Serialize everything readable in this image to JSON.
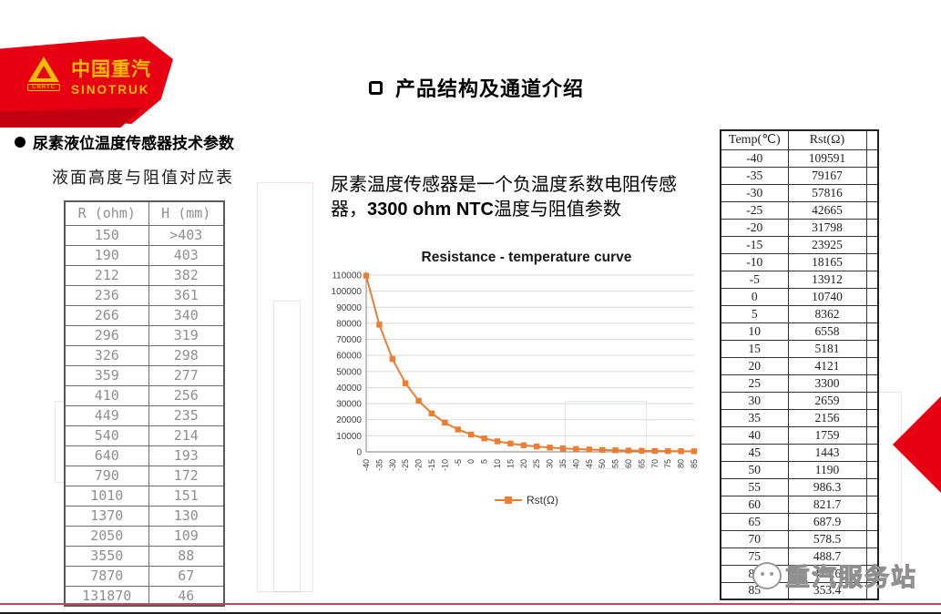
{
  "slide": {
    "logo": {
      "brand_cn": "中国重汽",
      "brand_en": "SINOTRUK",
      "emblem_label": "CNHTC"
    },
    "title": "产品结构及通道介绍",
    "section_heading": "尿素液位温度传感器技术参数",
    "description": {
      "part1": "尿素温度传感器是一个负温度系数电阻传感器，",
      "bold": "3300 ohm NTC",
      "part2": "温度与阻值参数"
    },
    "footer_watermark": "重汽服务站"
  },
  "level_table": {
    "title": "液面高度与阻值对应表",
    "headers": [
      "R (ohm)",
      "H (mm)"
    ],
    "rows": [
      [
        "150",
        ">403"
      ],
      [
        "190",
        "403"
      ],
      [
        "212",
        "382"
      ],
      [
        "236",
        "361"
      ],
      [
        "266",
        "340"
      ],
      [
        "296",
        "319"
      ],
      [
        "326",
        "298"
      ],
      [
        "359",
        "277"
      ],
      [
        "410",
        "256"
      ],
      [
        "449",
        "235"
      ],
      [
        "540",
        "214"
      ],
      [
        "640",
        "193"
      ],
      [
        "790",
        "172"
      ],
      [
        "1010",
        "151"
      ],
      [
        "1370",
        "130"
      ],
      [
        "2050",
        "109"
      ],
      [
        "3550",
        "88"
      ],
      [
        "7870",
        "67"
      ],
      [
        "131870",
        "46"
      ]
    ]
  },
  "temp_table": {
    "headers": [
      "Temp(℃)",
      "Rst(Ω)"
    ],
    "rows": [
      [
        "-40",
        "109591"
      ],
      [
        "-35",
        "79167"
      ],
      [
        "-30",
        "57816"
      ],
      [
        "-25",
        "42665"
      ],
      [
        "-20",
        "31798"
      ],
      [
        "-15",
        "23925"
      ],
      [
        "-10",
        "18165"
      ],
      [
        "-5",
        "13912"
      ],
      [
        "0",
        "10740"
      ],
      [
        "5",
        "8362"
      ],
      [
        "10",
        "6558"
      ],
      [
        "15",
        "5181"
      ],
      [
        "20",
        "4121"
      ],
      [
        "25",
        "3300"
      ],
      [
        "30",
        "2659"
      ],
      [
        "35",
        "2156"
      ],
      [
        "40",
        "1759"
      ],
      [
        "45",
        "1443"
      ],
      [
        "50",
        "1190"
      ],
      [
        "55",
        "986.3"
      ],
      [
        "60",
        "821.7"
      ],
      [
        "65",
        "687.9"
      ],
      [
        "70",
        "578.5"
      ],
      [
        "75",
        "488.7"
      ],
      [
        "80",
        "414.6"
      ],
      [
        "85",
        "353.4"
      ]
    ]
  },
  "chart_data": {
    "type": "line",
    "title": "Resistance - temperature curve",
    "x": [
      -40,
      -35,
      -30,
      -25,
      -20,
      -15,
      -10,
      -5,
      0,
      5,
      10,
      15,
      20,
      25,
      30,
      35,
      40,
      45,
      50,
      55,
      60,
      65,
      70,
      75,
      80,
      85
    ],
    "series": [
      {
        "name": "Rst(Ω)",
        "values": [
          109591,
          79167,
          57816,
          42665,
          31798,
          23925,
          18165,
          13912,
          10740,
          8362,
          6558,
          5181,
          4121,
          3300,
          2659,
          2156,
          1759,
          1443,
          1190,
          986.3,
          821.7,
          687.9,
          578.5,
          488.7,
          414.6,
          353.4
        ]
      }
    ],
    "xlabel": "",
    "ylabel": "",
    "ylim": [
      0,
      110000
    ],
    "ytick_step": 10000,
    "grid": true,
    "legend_position": "bottom",
    "line_color": "#ed7d31",
    "marker": "square"
  },
  "colors": {
    "brand_red": "#e60012",
    "brand_yellow": "#f9be00",
    "series_orange": "#ed7d31",
    "footer_line": "#b84a5e"
  }
}
